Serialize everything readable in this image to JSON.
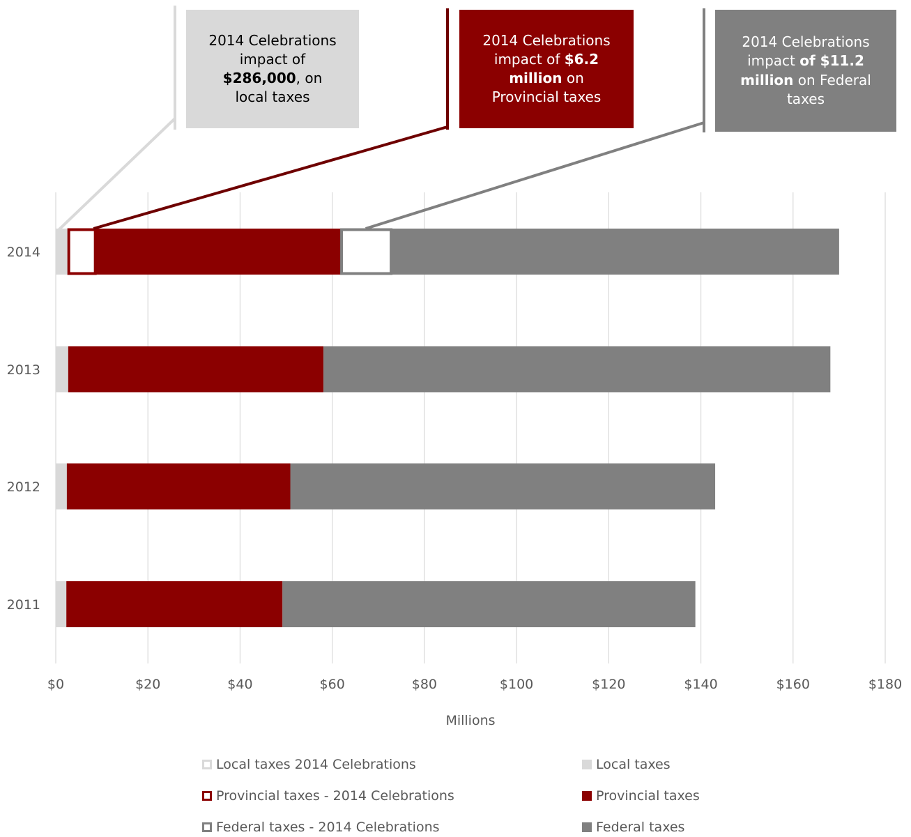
{
  "colors": {
    "local": "#d9d9d9",
    "provincial": "#8b0000",
    "federal": "#808080",
    "grid": "#d9d9d9",
    "text": "#595959"
  },
  "callouts": {
    "local": {
      "line1": "2014 Celebrations",
      "line2": "impact of",
      "bold": "$286,000",
      "after": ", on",
      "line4": "local taxes"
    },
    "provincial": {
      "line1": "2014 Celebrations",
      "pre": "impact of ",
      "bold1": "$6.2",
      "bold2": "million",
      "after": " on",
      "line4": "Provincial taxes"
    },
    "federal": {
      "line1": "2014 Celebrations",
      "pre": "impact ",
      "bold1": "of $11.2",
      "bold2": "million",
      "after": " on Federal",
      "line4": "taxes"
    }
  },
  "chart_data": {
    "type": "bar",
    "orientation": "horizontal",
    "stacked": true,
    "categories": [
      "2014",
      "2013",
      "2012",
      "2011"
    ],
    "series": [
      {
        "name": "Local taxes",
        "values": [
          2.6,
          2.7,
          2.4,
          2.3
        ]
      },
      {
        "name": "Provincial taxes",
        "values": [
          59.2,
          55.4,
          48.5,
          46.9
        ]
      },
      {
        "name": "Federal taxes",
        "values": [
          108.2,
          110.0,
          92.2,
          89.6
        ]
      }
    ],
    "celebrations_2014": {
      "local": 0.286,
      "provincial": 6.2,
      "federal": 11.2
    },
    "xlabel": "Millions",
    "xlim": [
      0,
      180
    ],
    "xticks": [
      "$0",
      "$20",
      "$40",
      "$60",
      "$80",
      "$100",
      "$120",
      "$140",
      "$160",
      "$180"
    ],
    "xtick_values": [
      0,
      20,
      40,
      60,
      80,
      100,
      120,
      140,
      160,
      180
    ],
    "grid": "vertical",
    "legend": [
      "Local taxes 2014 Celebrations",
      "Local taxes",
      "Provincial taxes - 2014 Celebrations",
      "Provincial taxes",
      "Federal taxes - 2014 Celebrations",
      "Federal taxes"
    ],
    "legend_position": "bottom"
  }
}
